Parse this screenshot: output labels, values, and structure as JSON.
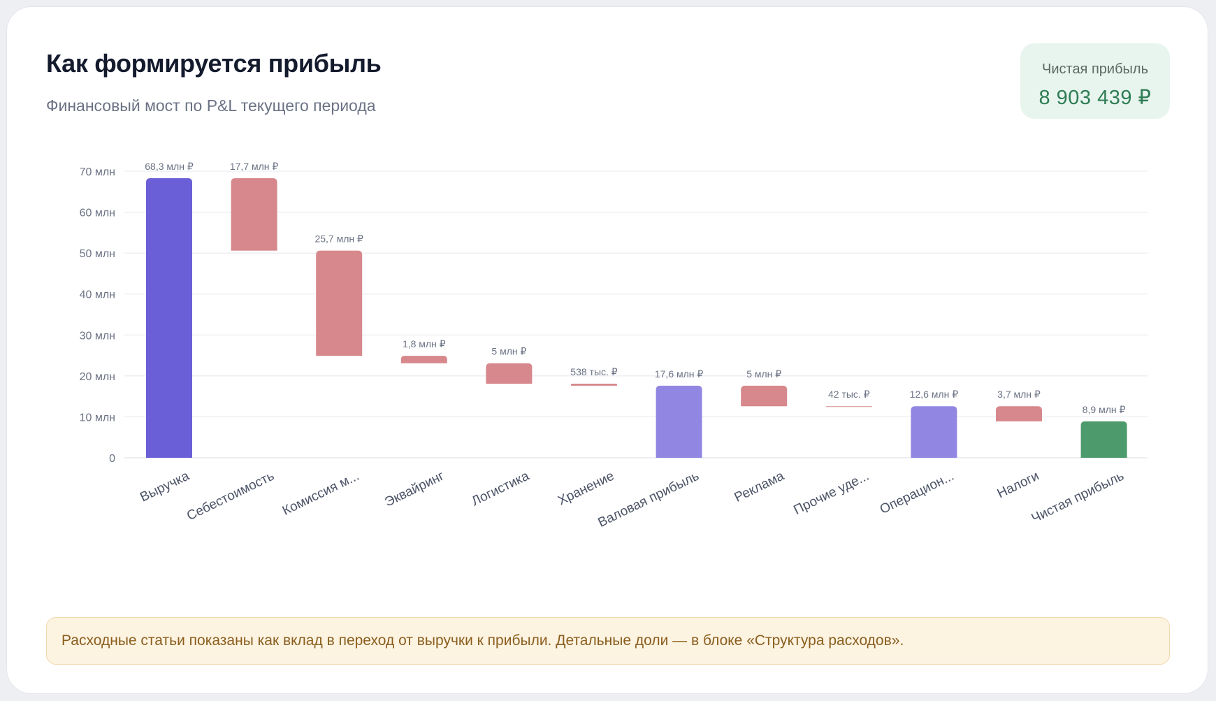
{
  "header": {
    "title": "Как формируется прибыль",
    "subtitle": "Финансовый мост по P&L текущего периода"
  },
  "badge": {
    "label": "Чистая прибыль",
    "value": "8 903 439 ₽"
  },
  "note": "Расходные статьи показаны как вклад в переход от выручки к прибыли. Детальные доли — в блоке «Структура расходов».",
  "colors": {
    "revenue": "#6a5fd6",
    "subtotal": "#9187e2",
    "expense": "#d6888c",
    "net": "#4d9a6c",
    "grid": "#e6e8ed"
  },
  "chart_data": {
    "type": "bar",
    "subtype": "waterfall",
    "title": "",
    "xlabel": "",
    "ylabel": "",
    "ylim": [
      0,
      70
    ],
    "y_unit": "млн ₽",
    "y_ticks": [
      {
        "value": 0,
        "label": "0"
      },
      {
        "value": 10,
        "label": "10 млн"
      },
      {
        "value": 20,
        "label": "20 млн"
      },
      {
        "value": 30,
        "label": "30 млн"
      },
      {
        "value": 40,
        "label": "40 млн"
      },
      {
        "value": 50,
        "label": "50 млн"
      },
      {
        "value": 60,
        "label": "60 млн"
      },
      {
        "value": 70,
        "label": "70 млн"
      }
    ],
    "grid": true,
    "bars": [
      {
        "category": "Выручка",
        "kind": "revenue",
        "start": 0,
        "end": 68.3,
        "label": "68,3 млн ₽"
      },
      {
        "category": "Себестоимость",
        "kind": "expense",
        "start": 50.6,
        "end": 68.3,
        "label": "17,7 млн ₽"
      },
      {
        "category": "Комиссия м...",
        "kind": "expense",
        "start": 24.9,
        "end": 50.6,
        "label": "25,7 млн ₽"
      },
      {
        "category": "Эквайринг",
        "kind": "expense",
        "start": 23.1,
        "end": 24.9,
        "label": "1,8 млн ₽"
      },
      {
        "category": "Логистика",
        "kind": "expense",
        "start": 18.1,
        "end": 23.1,
        "label": "5 млн ₽"
      },
      {
        "category": "Хранение",
        "kind": "expense",
        "start": 17.6,
        "end": 18.1,
        "label": "538 тыс. ₽"
      },
      {
        "category": "Валовая прибыль",
        "kind": "subtotal",
        "start": 0,
        "end": 17.6,
        "label": "17,6 млн ₽"
      },
      {
        "category": "Реклама",
        "kind": "expense",
        "start": 12.6,
        "end": 17.6,
        "label": "5 млн ₽"
      },
      {
        "category": "Прочие уде...",
        "kind": "expense",
        "start": 12.56,
        "end": 12.6,
        "label": "42 тыс. ₽"
      },
      {
        "category": "Операцион...",
        "kind": "subtotal",
        "start": 0,
        "end": 12.6,
        "label": "12,6 млн ₽"
      },
      {
        "category": "Налоги",
        "kind": "expense",
        "start": 8.9,
        "end": 12.6,
        "label": "3,7 млн ₽"
      },
      {
        "category": "Чистая прибыль",
        "kind": "net",
        "start": 0,
        "end": 8.9,
        "label": "8,9 млн ₽"
      }
    ]
  }
}
